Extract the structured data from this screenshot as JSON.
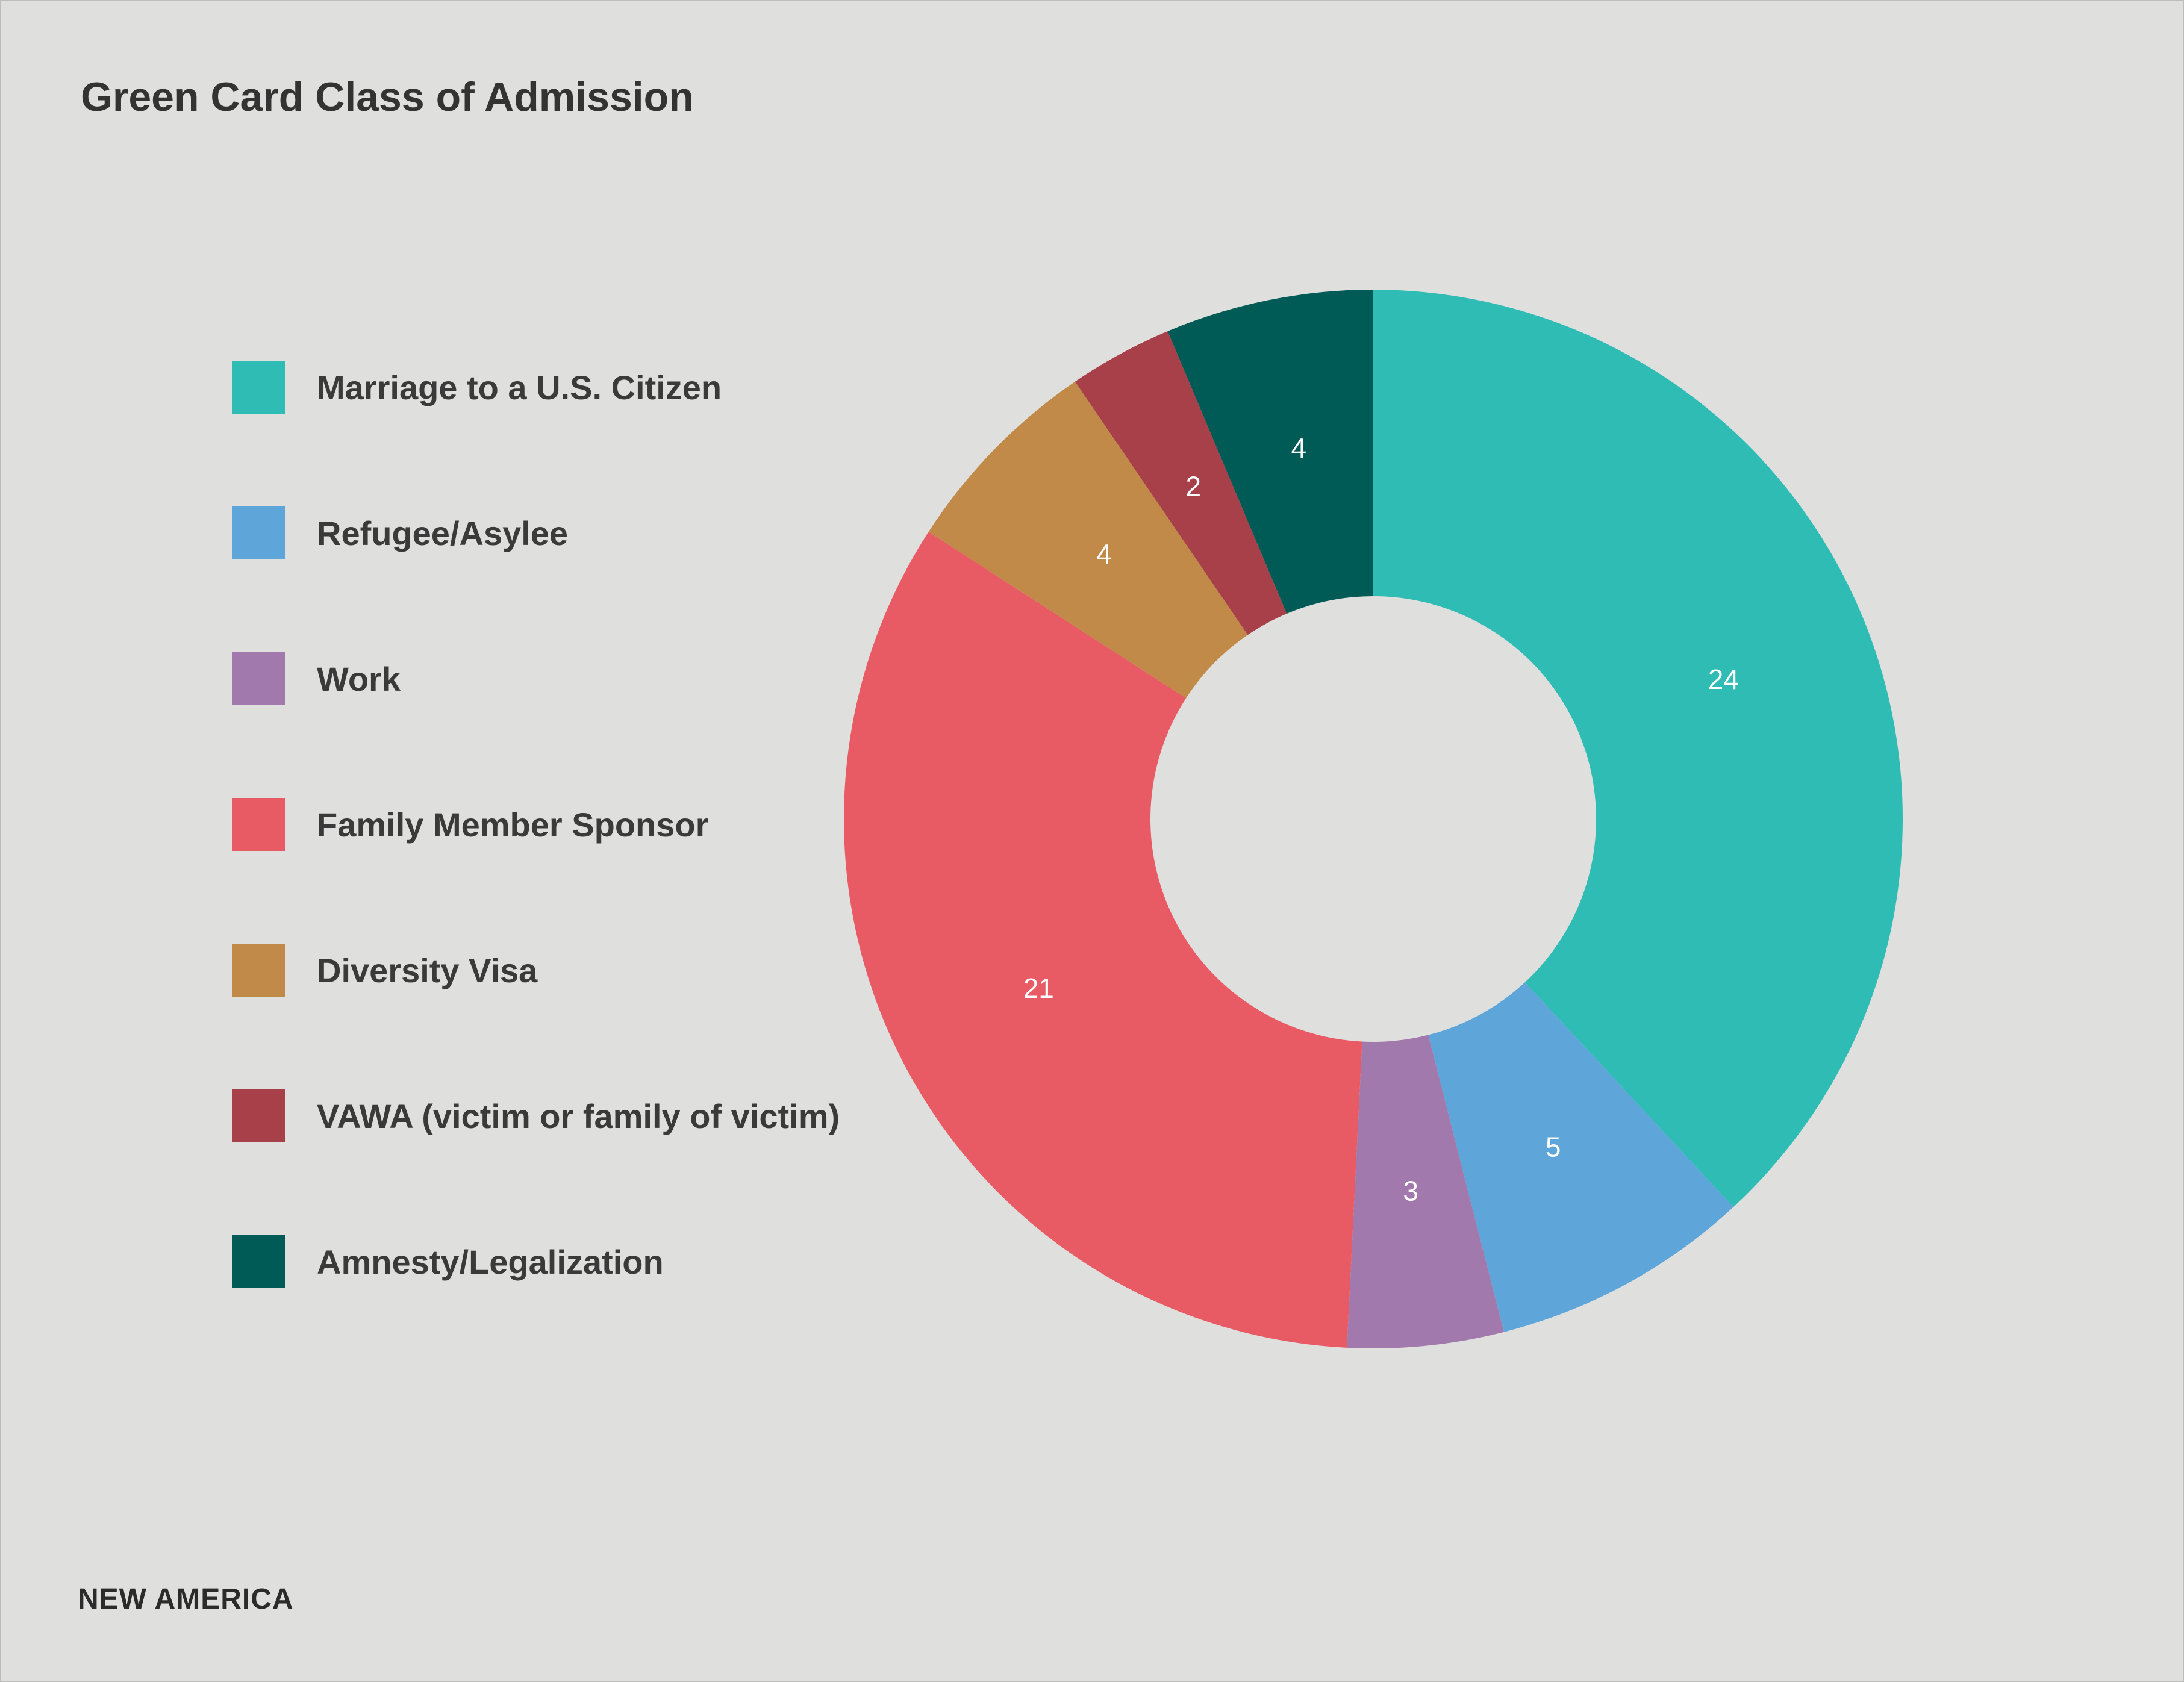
{
  "chart_data": {
    "type": "pie",
    "variant": "donut",
    "title": "Green Card Class of Admission",
    "categories": [
      "Marriage to a U.S. Citizen",
      "Refugee/Asylee",
      "Work",
      "Family Member Sponsor",
      "Diversity Visa",
      "VAWA (victim or family of victim)",
      "Amnesty/Legalization"
    ],
    "values": [
      24,
      5,
      3,
      21,
      4,
      2,
      4
    ],
    "colors": [
      "#2fbcb5",
      "#5ea6da",
      "#a279ad",
      "#e85b64",
      "#c28a48",
      "#a8404a",
      "#005a56"
    ],
    "start": "top",
    "direction": "clockwise",
    "legend_position": "left",
    "data_labels": true
  },
  "footer": {
    "logo": "NEW AMERICA"
  }
}
